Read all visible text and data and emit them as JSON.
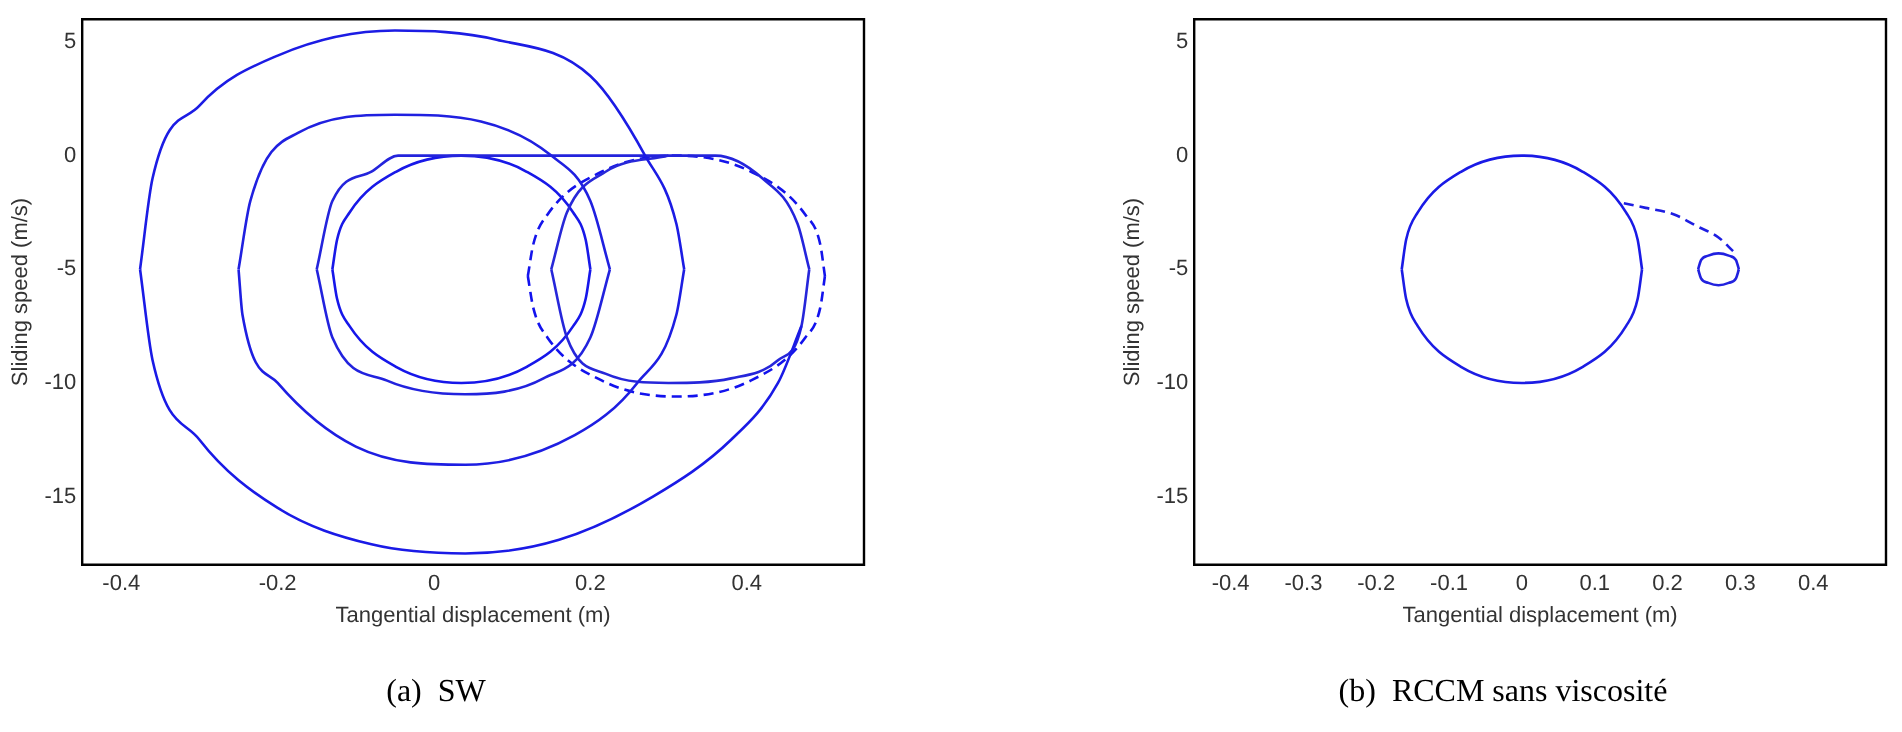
{
  "chart_data": [
    {
      "type": "line",
      "title": "(a)  SW",
      "xlabel": "Tangential displacement (m)",
      "ylabel": "Sliding speed (m/s)",
      "xlim": [
        -0.45,
        0.55
      ],
      "ylim": [
        -18,
        6
      ],
      "xticks": [
        -0.4,
        -0.2,
        0,
        0.2,
        0.4
      ],
      "yticks": [
        -15,
        -10,
        -5,
        0,
        5
      ],
      "series": [
        {
          "color": "#1a1ae6",
          "line_style": "solid",
          "x": [
            -0.376,
            -0.36,
            -0.3,
            -0.2,
            -0.08,
            0.04,
            0.16,
            0.28,
            0.38,
            0.44,
            0.47
          ],
          "values": [
            -5,
            -9,
            -12.5,
            -15.5,
            -17.1,
            -17.5,
            -16.9,
            -15,
            -12.5,
            -10,
            -7.5
          ]
        },
        {
          "color": "#1c1ce4",
          "line_style": "solid",
          "x": [
            -0.376,
            -0.36,
            -0.3,
            -0.2,
            -0.05,
            0.08,
            0.2,
            0.27,
            0.31,
            0.32
          ],
          "values": [
            -5,
            -1,
            2.2,
            4.4,
            5.5,
            5.1,
            3.5,
            0,
            -3,
            -5
          ]
        },
        {
          "color": "#1e1ee2",
          "line_style": "solid",
          "x": [
            -0.25,
            -0.245,
            -0.2,
            -0.1,
            0.04,
            0.18,
            0.26,
            0.31,
            0.32
          ],
          "values": [
            -5,
            -7,
            -10,
            -12.8,
            -13.6,
            -12.3,
            -10,
            -7,
            -5
          ]
        },
        {
          "color": "#2020e0",
          "line_style": "solid",
          "x": [
            -0.25,
            -0.235,
            -0.174,
            -0.05,
            0.06,
            0.15,
            0.2,
            0.225
          ],
          "values": [
            -5,
            -2,
            1,
            1.8,
            1.5,
            0,
            -2,
            -5
          ]
        },
        {
          "color": "#2222de",
          "line_style": "solid",
          "x": [
            -0.15,
            -0.13,
            -0.06,
            0.04,
            0.14,
            0.2,
            0.225
          ],
          "values": [
            -5,
            -8,
            -9.9,
            -10.5,
            -9.8,
            -8,
            -5
          ]
        },
        {
          "color": "#2424dc",
          "line_style": "solid",
          "x": [
            -0.15,
            -0.13,
            -0.08,
            -0.046,
            0.36,
            0.42,
            0.465,
            0.48
          ],
          "values": [
            -5,
            -2,
            -0.7,
            0,
            0,
            -1,
            -3,
            -5
          ]
        },
        {
          "color": "#2626da",
          "line_style": "solid",
          "x": [
            0.15,
            0.17,
            0.22,
            0.3,
            0.38,
            0.44,
            0.47,
            0.48
          ],
          "values": [
            -5,
            -8,
            -9.6,
            -10,
            -9.8,
            -9,
            -7.5,
            -5
          ]
        },
        {
          "color": "#2828d8",
          "line_style": "solid",
          "x": [
            0.15,
            0.17,
            0.22,
            0.3
          ],
          "values": [
            -5,
            -2.5,
            -0.7,
            0
          ]
        },
        {
          "color": "#1818e8",
          "line_style": "solid",
          "x": [
            -0.13,
            -0.124,
            -0.108,
            -0.048,
            0.035,
            0.118,
            0.178,
            0.194,
            0.2
          ],
          "values": [
            -5,
            -3.7,
            -2.5,
            -0.7,
            0,
            -0.7,
            -2.5,
            -3.7,
            -5
          ]
        },
        {
          "color": "#1616ea",
          "line_style": "solid",
          "x": [
            -0.13,
            -0.124,
            -0.108,
            -0.048,
            0.035,
            0.118,
            0.178,
            0.194,
            0.2
          ],
          "values": [
            -5,
            -6.3,
            -7.5,
            -9.3,
            -10,
            -9.3,
            -7.5,
            -6.3,
            -5
          ]
        },
        {
          "color": "#1414ec",
          "line_style": "dashed",
          "x": [
            0.12,
            0.127,
            0.145,
            0.215,
            0.31,
            0.405,
            0.475,
            0.494,
            0.5
          ],
          "values": [
            -5.3,
            -3.9,
            -2.6,
            -0.7,
            0,
            -0.7,
            -2.6,
            -3.9,
            -5.3
          ]
        },
        {
          "color": "#1212ee",
          "line_style": "dashed",
          "x": [
            0.12,
            0.127,
            0.145,
            0.215,
            0.31,
            0.405,
            0.475,
            0.494,
            0.5
          ],
          "values": [
            -5.3,
            -6.7,
            -8,
            -9.9,
            -10.6,
            -9.9,
            -8,
            -6.7,
            -5.3
          ]
        }
      ]
    },
    {
      "type": "line",
      "title": "(b)  RCCM sans viscosité",
      "xlabel": "Tangential displacement (m)",
      "ylabel": "Sliding speed (m/s)",
      "xlim": [
        -0.45,
        0.5
      ],
      "ylim": [
        -18,
        6
      ],
      "xticks": [
        -0.4,
        -0.3,
        -0.2,
        -0.1,
        0,
        0.1,
        0.2,
        0.3,
        0.4
      ],
      "yticks": [
        -15,
        -10,
        -5,
        0,
        5
      ],
      "series": [
        {
          "color": "#1a1ae6",
          "line_style": "solid",
          "x": [
            -0.165,
            -0.159,
            -0.143,
            -0.083,
            0,
            0.083,
            0.143,
            0.159,
            0.165
          ],
          "values": [
            -5,
            -3.7,
            -2.5,
            -0.7,
            0,
            -0.7,
            -2.5,
            -3.7,
            -5
          ]
        },
        {
          "color": "#1c1ce4",
          "line_style": "solid",
          "x": [
            -0.165,
            -0.159,
            -0.143,
            -0.083,
            0,
            0.083,
            0.143,
            0.159,
            0.165
          ],
          "values": [
            -5,
            -6.3,
            -7.5,
            -9.3,
            -10,
            -9.3,
            -7.5,
            -6.3,
            -5
          ]
        },
        {
          "color": "#1e1ee2",
          "line_style": "dashed",
          "x": [
            0.14,
            0.17,
            0.21,
            0.24,
            0.27,
            0.29
          ],
          "values": [
            -2.1,
            -2.3,
            -2.6,
            -3.1,
            -3.6,
            -4.2
          ]
        },
        {
          "color": "#2020e0",
          "line_style": "solid",
          "x": [
            0.242,
            0.246,
            0.256,
            0.27,
            0.284,
            0.294,
            0.298
          ],
          "values": [
            -5,
            -4.6,
            -4.4,
            -4.3,
            -4.4,
            -4.6,
            -5
          ]
        },
        {
          "color": "#2222de",
          "line_style": "solid",
          "x": [
            0.242,
            0.246,
            0.256,
            0.27,
            0.284,
            0.294,
            0.298
          ],
          "values": [
            -5,
            -5.4,
            -5.6,
            -5.7,
            -5.6,
            -5.4,
            -5
          ]
        }
      ]
    }
  ]
}
